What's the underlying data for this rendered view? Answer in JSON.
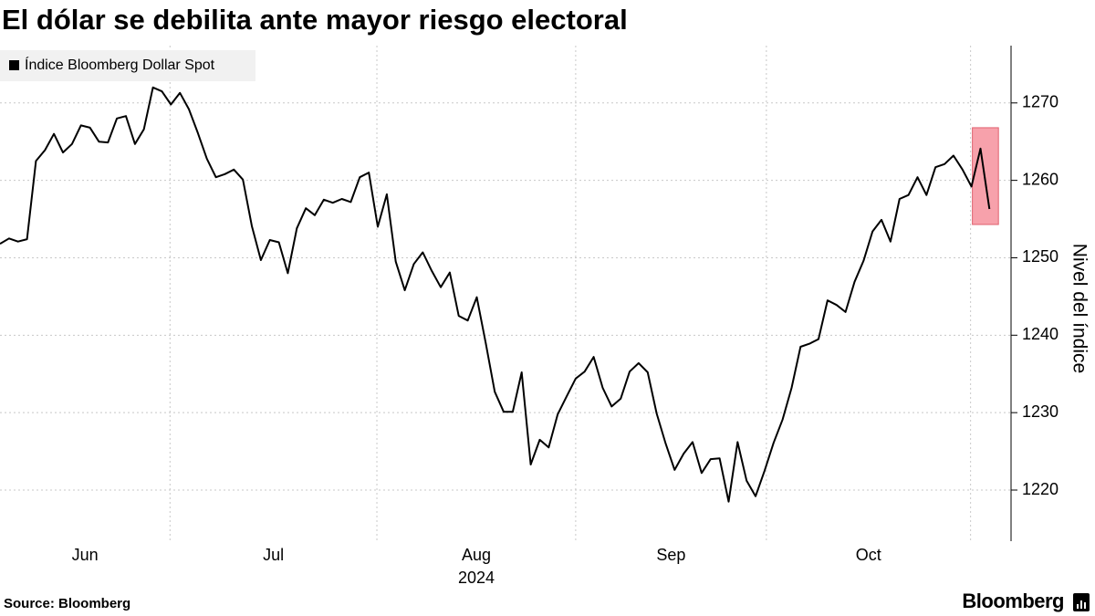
{
  "chart_data": {
    "type": "line",
    "title": "El dólar se debilita ante mayor riesgo electoral",
    "ylabel": "Nivel del índice",
    "xlabel": "2024",
    "source": "Source: Bloomberg",
    "brand": "Bloomberg",
    "legend": "top-left",
    "grid": true,
    "xlim": [
      0,
      112.4
    ],
    "xticks": [
      {
        "value": 0,
        "label": "Jun"
      },
      {
        "value": 18.9,
        "label": "Jul"
      },
      {
        "value": 41.9,
        "label": "Aug"
      },
      {
        "value": 64.0,
        "label": "Sep"
      },
      {
        "value": 85.2,
        "label": "Oct"
      },
      {
        "value": 107.9,
        "label": null
      }
    ],
    "ylim": [
      1213.4,
      1277.4
    ],
    "yticks": [
      1220,
      1230,
      1240,
      1250,
      1260,
      1270
    ],
    "highlight": {
      "x": [
        108.1,
        111.0
      ],
      "y": [
        1254.3,
        1266.8
      ],
      "color": "#f7a1ab"
    },
    "series": [
      {
        "name": "Índice Bloomberg Dollar Spot",
        "color": "#000000",
        "values": [
          1251.8,
          1252.5,
          1252.1,
          1252.4,
          1262.5,
          1263.9,
          1266.0,
          1263.6,
          1264.7,
          1267.1,
          1266.8,
          1265.0,
          1264.9,
          1268.0,
          1268.3,
          1264.7,
          1266.6,
          1272.0,
          1271.5,
          1269.8,
          1271.3,
          1269.2,
          1266.1,
          1262.8,
          1260.4,
          1260.8,
          1261.4,
          1260.1,
          1254.1,
          1249.7,
          1252.3,
          1252.0,
          1248.0,
          1253.8,
          1256.4,
          1255.5,
          1257.5,
          1257.1,
          1257.6,
          1257.2,
          1260.4,
          1261.0,
          1254.0,
          1258.2,
          1249.5,
          1245.8,
          1249.2,
          1250.7,
          1248.3,
          1246.2,
          1248.1,
          1242.5,
          1241.9,
          1244.9,
          1239.0,
          1232.7,
          1230.1,
          1230.1,
          1235.2,
          1223.3,
          1226.5,
          1225.5,
          1229.8,
          1232.1,
          1234.4,
          1235.3,
          1237.2,
          1233.2,
          1230.8,
          1231.8,
          1235.3,
          1236.4,
          1235.2,
          1229.9,
          1226.0,
          1222.6,
          1224.7,
          1226.2,
          1222.2,
          1224.0,
          1224.1,
          1218.5,
          1226.2,
          1221.2,
          1219.2,
          1222.5,
          1226.1,
          1229.1,
          1233.2,
          1238.5,
          1238.9,
          1239.5,
          1244.5,
          1243.9,
          1243.0,
          1246.9,
          1249.6,
          1253.4,
          1254.9,
          1252.1,
          1257.6,
          1258.1,
          1260.4,
          1258.1,
          1261.7,
          1262.1,
          1263.2,
          1261.4,
          1259.2,
          1264.1,
          1256.3
        ]
      }
    ]
  }
}
